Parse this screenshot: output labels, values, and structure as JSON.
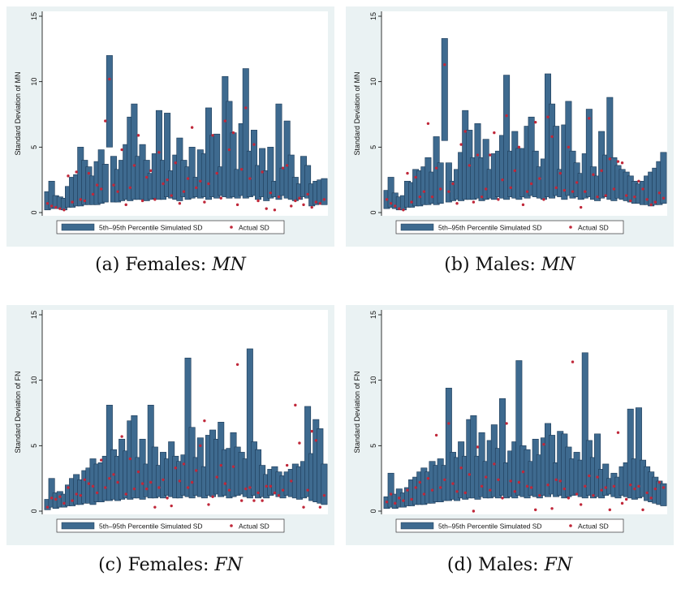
{
  "legend": {
    "bar_label": "5th–95th Percentile Simulated SD",
    "dot_label": "Actual SD"
  },
  "colors": {
    "bar": "#3e6a8f",
    "bar_edge": "#1c3a57",
    "dot": "#c0283a",
    "panel_bg": "#eaf2f3",
    "plot_bg": "#ffffff"
  },
  "chart_data": [
    {
      "id": "a",
      "type": "bar",
      "caption_prefix": "(a) Females: ",
      "caption_math": "MN",
      "ylabel": "Standard Deviation of MN",
      "ylim": [
        0,
        15
      ],
      "yticks": [
        "0",
        "5",
        "10",
        "15"
      ],
      "series": [
        {
          "name": "5th–95th Percentile Simulated SD",
          "low": [
            0.2,
            0.3,
            0.3,
            0.3,
            0.2,
            0.4,
            0.4,
            0.5,
            0.5,
            0.6,
            0.6,
            0.6,
            0.6,
            0.7,
            0.8,
            5.0,
            0.8,
            0.8,
            0.9,
            1.0,
            0.9,
            1.0,
            1.0,
            1.0,
            0.9,
            1.0,
            1.1,
            1.0,
            1.0,
            1.2,
            1.1,
            1.0,
            0.9,
            1.2,
            1.0,
            1.1,
            1.2,
            1.1,
            1.2,
            1.0,
            1.2,
            1.1,
            1.3,
            1.2,
            1.1,
            1.2,
            1.1,
            1.3,
            1.1,
            1.2,
            1.3,
            1.0,
            1.2,
            0.9,
            1.1,
            1.2,
            1.0,
            1.3,
            1.1,
            1.0,
            0.9,
            1.0,
            1.2,
            1.1,
            0.5,
            0.6,
            0.7,
            0.6
          ],
          "high": [
            1.6,
            2.4,
            1.3,
            1.2,
            1.1,
            2.0,
            2.7,
            2.9,
            5.0,
            4.0,
            3.5,
            2.8,
            3.9,
            4.8,
            3.7,
            12.0,
            4.3,
            3.3,
            4.0,
            5.2,
            7.3,
            8.3,
            4.3,
            5.2,
            4.0,
            3.0,
            4.5,
            7.8,
            4.0,
            7.6,
            3.2,
            4.4,
            5.7,
            4.0,
            3.5,
            5.0,
            2.7,
            4.8,
            4.5,
            8.0,
            5.9,
            6.0,
            3.5,
            10.4,
            8.5,
            6.1,
            3.3,
            6.8,
            11.0,
            4.7,
            6.3,
            3.6,
            4.9,
            3.2,
            5.0,
            2.4,
            8.3,
            3.4,
            7.0,
            4.4,
            2.7,
            2.2,
            4.3,
            3.6,
            2.2,
            2.4,
            2.5,
            2.6
          ]
        },
        {
          "name": "Actual SD",
          "values": [
            0.7,
            0.5,
            0.4,
            0.3,
            0.2,
            2.8,
            0.8,
            3.1,
            1.0,
            0.9,
            3.0,
            1.4,
            2.1,
            1.8,
            7.0,
            10.2,
            2.1,
            1.6,
            4.8,
            0.6,
            1.9,
            3.6,
            5.9,
            0.9,
            2.7,
            3.2,
            1.0,
            4.6,
            2.2,
            2.5,
            1.3,
            3.8,
            0.7,
            1.6,
            2.6,
            6.5,
            1.9,
            2.4,
            0.8,
            2.2,
            5.9,
            3.0,
            1.1,
            7.0,
            4.8,
            6.1,
            0.6,
            3.3,
            8.0,
            2.6,
            5.2,
            0.9,
            3.1,
            0.3,
            1.5,
            0.2,
            1.2,
            3.4,
            3.6,
            0.5,
            0.9,
            1.1,
            0.6,
            1.4,
            0.4,
            0.8,
            0.7,
            1.0
          ]
        }
      ]
    },
    {
      "id": "b",
      "type": "bar",
      "caption_prefix": "(b) Males: ",
      "caption_math": "MN",
      "ylabel": "Standard Deviation of MN",
      "ylim": [
        0,
        15
      ],
      "yticks": [
        "0",
        "5",
        "10",
        "15"
      ],
      "series": [
        {
          "name": "5th–95th Percentile Simulated SD",
          "low": [
            0.3,
            0.4,
            0.3,
            0.2,
            0.2,
            0.4,
            0.4,
            0.5,
            0.5,
            0.6,
            0.6,
            0.7,
            0.6,
            0.7,
            5.5,
            0.8,
            0.9,
            1.0,
            0.9,
            1.0,
            1.0,
            1.0,
            1.1,
            0.9,
            1.0,
            1.1,
            1.0,
            1.2,
            1.1,
            1.0,
            1.2,
            1.1,
            1.0,
            1.2,
            1.1,
            1.3,
            1.2,
            1.1,
            1.0,
            1.2,
            1.1,
            1.3,
            1.2,
            1.0,
            1.3,
            1.1,
            1.2,
            1.0,
            1.1,
            1.2,
            1.0,
            0.9,
            1.1,
            1.2,
            1.0,
            0.9,
            1.1,
            1.0,
            0.9,
            0.8,
            0.7,
            0.7,
            0.6,
            0.6,
            0.5,
            0.6,
            0.6,
            0.7
          ],
          "high": [
            1.7,
            2.7,
            1.5,
            1.2,
            1.3,
            2.4,
            2.3,
            3.3,
            3.2,
            3.5,
            4.2,
            3.1,
            5.8,
            3.8,
            13.3,
            3.8,
            2.4,
            3.3,
            4.6,
            7.8,
            6.3,
            4.2,
            6.8,
            4.2,
            5.6,
            3.3,
            4.5,
            4.7,
            5.9,
            10.5,
            4.7,
            6.2,
            4.9,
            4.9,
            6.6,
            7.3,
            4.7,
            3.5,
            4.1,
            10.6,
            8.3,
            6.6,
            3.3,
            6.7,
            8.5,
            4.7,
            3.8,
            3.0,
            4.5,
            7.9,
            3.5,
            2.8,
            6.2,
            4.4,
            8.8,
            4.2,
            3.6,
            3.3,
            3.1,
            2.8,
            2.4,
            2.2,
            2.4,
            2.8,
            3.1,
            3.4,
            3.9,
            4.6
          ]
        },
        {
          "name": "Actual SD",
          "values": [
            1.0,
            0.7,
            0.5,
            0.3,
            0.2,
            3.0,
            0.8,
            2.7,
            1.2,
            1.6,
            6.8,
            1.2,
            3.4,
            1.8,
            11.3,
            1.6,
            2.2,
            0.7,
            5.2,
            6.2,
            3.6,
            0.8,
            4.4,
            1.2,
            1.8,
            4.4,
            6.1,
            1.0,
            2.5,
            7.4,
            1.9,
            3.2,
            5.0,
            0.6,
            1.6,
            2.2,
            6.9,
            2.6,
            1.0,
            7.3,
            5.8,
            1.9,
            3.0,
            1.7,
            5.0,
            1.6,
            2.3,
            0.4,
            1.6,
            7.2,
            2.9,
            1.2,
            3.2,
            1.3,
            4.1,
            1.8,
            3.9,
            3.8,
            1.3,
            0.9,
            1.2,
            2.4,
            1.8,
            1.0,
            0.6,
            0.8,
            1.5,
            1.1
          ]
        }
      ]
    },
    {
      "id": "c",
      "type": "bar",
      "caption_prefix": "(c) Females: ",
      "caption_math": "FN",
      "ylabel": "Standard Deviation of FN",
      "ylim": [
        0,
        15
      ],
      "yticks": [
        "0",
        "5",
        "10",
        "15"
      ],
      "series": [
        {
          "name": "5th–95th Percentile Simulated SD",
          "low": [
            0.1,
            0.3,
            0.2,
            0.3,
            0.3,
            0.4,
            0.4,
            0.5,
            0.5,
            0.6,
            0.6,
            0.5,
            0.7,
            0.7,
            0.8,
            0.8,
            0.9,
            0.8,
            0.9,
            1.0,
            0.9,
            1.0,
            1.0,
            0.9,
            1.1,
            1.0,
            1.0,
            1.1,
            1.0,
            1.2,
            1.1,
            1.0,
            1.0,
            1.2,
            1.1,
            1.0,
            1.2,
            1.1,
            1.0,
            1.2,
            1.1,
            1.3,
            1.1,
            1.2,
            1.0,
            1.1,
            1.2,
            1.3,
            1.1,
            1.0,
            1.2,
            1.0,
            1.1,
            1.0,
            1.2,
            1.3,
            1.1,
            1.0,
            1.2,
            1.1,
            1.0,
            0.9,
            1.0,
            1.1,
            0.8,
            0.7,
            0.6,
            0.5
          ],
          "high": [
            0.9,
            2.5,
            1.4,
            1.5,
            1.3,
            2.0,
            2.5,
            2.8,
            2.4,
            3.1,
            3.3,
            4.0,
            3.6,
            3.7,
            4.2,
            8.1,
            4.7,
            4.2,
            5.5,
            4.6,
            6.9,
            7.3,
            4.1,
            5.5,
            3.6,
            8.1,
            4.9,
            3.5,
            4.5,
            4.0,
            5.3,
            4.2,
            3.8,
            4.3,
            11.7,
            6.4,
            4.1,
            5.6,
            3.4,
            5.8,
            6.2,
            5.5,
            6.8,
            4.7,
            4.8,
            6.0,
            4.9,
            4.5,
            4.0,
            12.4,
            5.3,
            4.7,
            3.5,
            2.8,
            3.2,
            3.4,
            3.0,
            2.7,
            3.0,
            3.2,
            3.6,
            3.4,
            3.8,
            8.0,
            4.4,
            7.0,
            6.3,
            3.6
          ]
        },
        {
          "name": "Actual SD",
          "values": [
            0.3,
            1.0,
            0.9,
            1.1,
            0.6,
            1.8,
            0.8,
            1.3,
            1.2,
            2.4,
            2.1,
            1.9,
            1.4,
            3.9,
            1.8,
            2.5,
            2.8,
            2.2,
            5.7,
            1.3,
            4.0,
            1.7,
            3.0,
            2.1,
            1.7,
            2.2,
            0.3,
            1.8,
            2.4,
            1.0,
            0.4,
            3.3,
            2.3,
            3.6,
            1.8,
            2.2,
            3.1,
            5.0,
            6.9,
            0.5,
            1.1,
            2.6,
            3.5,
            2.1,
            1.6,
            3.4,
            11.2,
            0.8,
            1.7,
            1.8,
            0.8,
            1.4,
            0.8,
            1.9,
            1.9,
            1.4,
            1.2,
            1.6,
            3.5,
            2.3,
            8.1,
            5.2,
            0.3,
            1.6,
            6.1,
            5.4,
            0.3,
            1.2
          ]
        }
      ]
    },
    {
      "id": "d",
      "type": "bar",
      "caption_prefix": "(d) Males: ",
      "caption_math": "FN",
      "ylabel": "Standard Deviation of FN",
      "ylim": [
        0,
        15
      ],
      "yticks": [
        "0",
        "5",
        "10",
        "15"
      ],
      "series": [
        {
          "name": "5th–95th Percentile Simulated SD",
          "low": [
            0.2,
            0.3,
            0.2,
            0.3,
            0.3,
            0.4,
            0.4,
            0.5,
            0.5,
            0.5,
            0.6,
            0.6,
            0.7,
            0.7,
            0.8,
            0.8,
            0.9,
            0.8,
            1.0,
            0.9,
            1.0,
            1.0,
            0.9,
            1.1,
            1.0,
            1.0,
            1.1,
            1.0,
            1.2,
            1.0,
            1.1,
            1.0,
            1.2,
            1.1,
            1.0,
            1.2,
            1.1,
            1.0,
            1.2,
            1.1,
            1.3,
            1.1,
            1.2,
            1.0,
            1.1,
            1.2,
            1.3,
            1.1,
            1.0,
            1.2,
            1.0,
            1.1,
            1.0,
            1.2,
            1.3,
            1.1,
            1.0,
            1.2,
            1.1,
            1.0,
            0.9,
            1.0,
            1.1,
            0.8,
            0.7,
            0.6,
            0.5,
            0.4
          ],
          "high": [
            1.1,
            2.9,
            1.3,
            1.7,
            1.4,
            1.8,
            2.4,
            2.6,
            3.0,
            3.3,
            3.0,
            3.8,
            3.5,
            4.0,
            3.5,
            9.4,
            4.5,
            4.1,
            5.3,
            4.2,
            7.0,
            7.3,
            4.2,
            6.0,
            3.8,
            5.4,
            6.6,
            4.8,
            8.6,
            3.7,
            4.6,
            5.3,
            11.5,
            5.0,
            4.7,
            3.8,
            5.5,
            4.3,
            5.6,
            6.7,
            5.8,
            3.7,
            6.1,
            5.9,
            4.9,
            4.0,
            4.5,
            3.9,
            12.1,
            5.4,
            4.1,
            5.9,
            3.2,
            3.6,
            2.5,
            2.9,
            2.6,
            3.4,
            3.7,
            7.8,
            4.0,
            7.9,
            3.9,
            3.4,
            3.0,
            2.6,
            2.3,
            2.1
          ]
        },
        {
          "name": "Actual SD",
          "values": [
            0.7,
            1.3,
            0.6,
            1.0,
            0.8,
            1.6,
            0.9,
            1.8,
            2.2,
            1.3,
            2.5,
            1.6,
            5.8,
            1.8,
            2.4,
            6.7,
            2.1,
            1.5,
            3.3,
            1.4,
            2.8,
            0.0,
            4.9,
            1.9,
            2.6,
            1.6,
            3.6,
            2.4,
            1.0,
            6.7,
            2.3,
            1.5,
            2.2,
            3.0,
            1.9,
            1.8,
            0.1,
            1.2,
            5.1,
            2.0,
            0.2,
            2.4,
            2.3,
            1.7,
            1.0,
            11.4,
            1.3,
            0.5,
            1.9,
            2.7,
            1.2,
            2.6,
            1.6,
            1.8,
            0.1,
            1.9,
            6.0,
            0.6,
            0.9,
            2.0,
            1.7,
            1.9,
            0.1,
            1.4,
            1.0,
            1.7,
            2.2,
            1.8
          ]
        }
      ]
    }
  ]
}
